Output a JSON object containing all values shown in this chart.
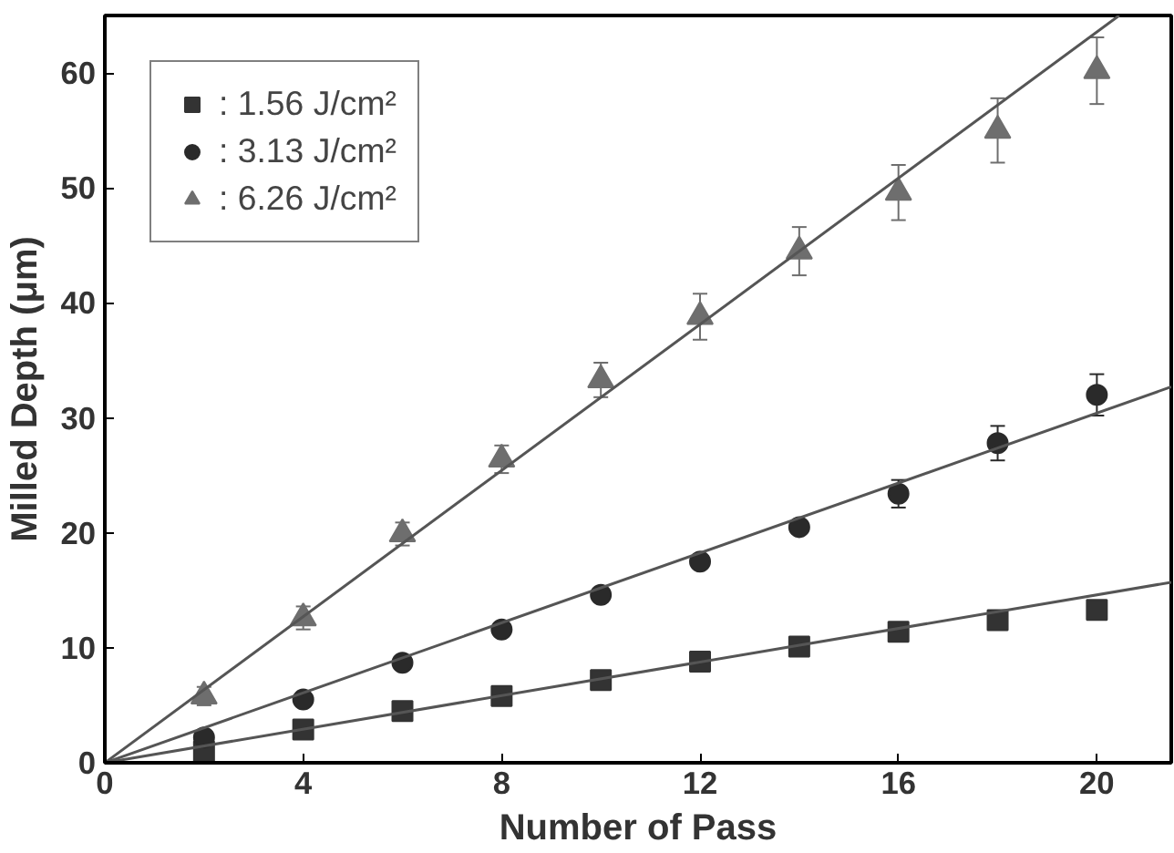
{
  "chart_data": {
    "type": "scatter",
    "xlabel": "Number of Pass",
    "ylabel": "Milled Depth (μm)",
    "xlim": [
      0,
      21.5
    ],
    "ylim": [
      0,
      65
    ],
    "xticks": [
      0,
      4,
      8,
      12,
      16,
      20
    ],
    "yticks": [
      0,
      10,
      20,
      30,
      40,
      50,
      60
    ],
    "grid": false,
    "legend": "top left",
    "series": [
      {
        "name": ": 1.56 J/cm²",
        "color": "#333333",
        "marker": "square",
        "x": [
          2,
          4,
          6,
          8,
          10,
          12,
          14,
          16,
          18,
          20
        ],
        "values": [
          1.0,
          2.9,
          4.5,
          5.8,
          7.2,
          8.8,
          10.1,
          11.4,
          12.4,
          13.3
        ]
      },
      {
        "name": ": 3.13 J/cm²",
        "color": "#2a2a2a",
        "marker": "circle",
        "x": [
          2,
          4,
          6,
          8,
          10,
          12,
          14,
          16,
          18,
          20
        ],
        "values": [
          2.2,
          5.5,
          8.7,
          11.6,
          14.6,
          17.5,
          20.5,
          23.4,
          27.8,
          32.0
        ],
        "errors": [
          0.5,
          0.5,
          0.5,
          0.5,
          0.6,
          0.6,
          0.6,
          1.2,
          1.5,
          1.8
        ]
      },
      {
        "name": ": 6.26 J/cm²",
        "color": "#6e6e6e",
        "marker": "triangle",
        "x": [
          2,
          4,
          6,
          8,
          10,
          12,
          14,
          16,
          18,
          20
        ],
        "values": [
          5.8,
          12.6,
          19.9,
          26.4,
          33.3,
          38.8,
          44.5,
          49.6,
          55.0,
          60.2
        ],
        "errors": [
          0.8,
          1.0,
          1.0,
          1.2,
          1.5,
          2.0,
          2.1,
          2.4,
          2.8,
          2.9
        ]
      },
      {
        "type": "line",
        "color": "#555555",
        "x": [
          0,
          21.5
        ],
        "values": [
          0,
          15.7
        ]
      },
      {
        "type": "line",
        "color": "#555555",
        "x": [
          0,
          21.5
        ],
        "values": [
          0,
          32.7
        ]
      },
      {
        "type": "line",
        "color": "#555555",
        "x": [
          0,
          20.45
        ],
        "values": [
          0,
          65
        ]
      }
    ]
  }
}
